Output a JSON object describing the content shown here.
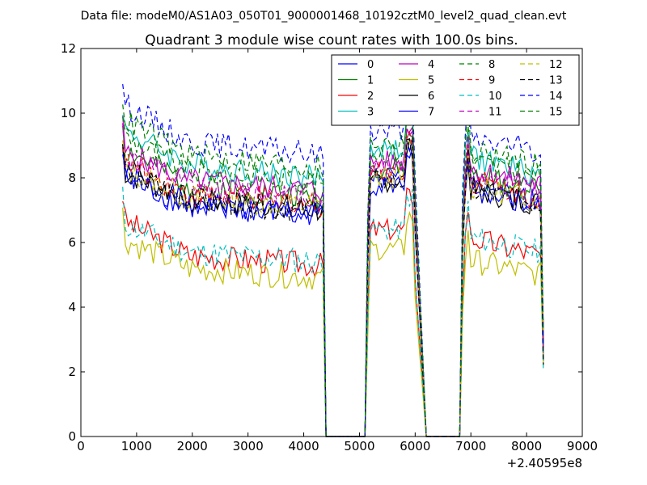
{
  "chart_data": {
    "type": "line",
    "suptitle": "Data file: modeM0/AS1A03_050T01_9000001468_10192cztM0_level2_quad_clean.evt",
    "title": "Quadrant 3 module wise count rates with 100.0s bins.",
    "xlabel": "",
    "ylabel": "",
    "x_offset_label": "+2.40595e8",
    "xlim": [
      0,
      9000
    ],
    "ylim": [
      0,
      12
    ],
    "xticks": [
      0,
      1000,
      2000,
      3000,
      4000,
      5000,
      6000,
      7000,
      8000,
      9000
    ],
    "yticks": [
      0,
      2,
      4,
      6,
      8,
      10,
      12
    ],
    "legend_position": "upper-right",
    "legend_columns": 4,
    "segments": [
      [
        750,
        4350
      ],
      [
        5150,
        5950
      ],
      [
        6850,
        8250
      ]
    ],
    "gaps": [
      [
        4400,
        5100
      ],
      [
        6200,
        6800
      ]
    ],
    "series": [
      {
        "name": "0",
        "color": "#0000ff",
        "dash": "solid",
        "level": [
          8.1,
          7.2,
          6.8,
          8.0,
          7.8,
          7.3
        ]
      },
      {
        "name": "1",
        "color": "#008000",
        "dash": "solid",
        "level": [
          8.9,
          7.8,
          7.4,
          8.3,
          8.1,
          7.6
        ]
      },
      {
        "name": "2",
        "color": "#ff0000",
        "dash": "solid",
        "level": [
          6.7,
          5.6,
          5.3,
          6.4,
          6.2,
          5.6
        ]
      },
      {
        "name": "3",
        "color": "#00bfbf",
        "dash": "solid",
        "level": [
          9.5,
          8.4,
          8.0,
          8.9,
          8.7,
          8.1
        ]
      },
      {
        "name": "4",
        "color": "#bf00bf",
        "dash": "solid",
        "level": [
          8.8,
          7.9,
          7.6,
          8.5,
          8.3,
          7.8
        ]
      },
      {
        "name": "5",
        "color": "#bfbf00",
        "dash": "solid",
        "level": [
          6.1,
          5.2,
          4.9,
          5.8,
          5.5,
          5.0
        ]
      },
      {
        "name": "6",
        "color": "#000000",
        "dash": "solid",
        "level": [
          8.2,
          7.3,
          7.0,
          7.9,
          7.7,
          7.2
        ]
      },
      {
        "name": "7",
        "color": "#0000ff",
        "dash": "solid",
        "level": [
          8.0,
          7.1,
          6.9,
          7.8,
          7.6,
          7.1
        ]
      },
      {
        "name": "8",
        "color": "#008000",
        "dash": "dashed",
        "level": [
          9.3,
          8.2,
          7.9,
          8.8,
          8.6,
          8.0
        ]
      },
      {
        "name": "9",
        "color": "#ff0000",
        "dash": "dashed",
        "level": [
          8.5,
          7.5,
          7.2,
          8.2,
          8.0,
          7.4
        ]
      },
      {
        "name": "10",
        "color": "#00bfbf",
        "dash": "dashed",
        "level": [
          6.6,
          5.7,
          5.4,
          6.4,
          6.2,
          5.7
        ]
      },
      {
        "name": "11",
        "color": "#bf00bf",
        "dash": "dashed",
        "level": [
          8.7,
          7.7,
          7.4,
          8.4,
          8.2,
          7.6
        ]
      },
      {
        "name": "12",
        "color": "#bfbf00",
        "dash": "dashed",
        "level": [
          8.3,
          7.4,
          7.1,
          8.0,
          7.8,
          7.3
        ]
      },
      {
        "name": "13",
        "color": "#000000",
        "dash": "dashed",
        "level": [
          8.3,
          7.3,
          7.0,
          7.9,
          7.7,
          7.2
        ]
      },
      {
        "name": "14",
        "color": "#0000ff",
        "dash": "dashed",
        "level": [
          10.3,
          9.1,
          8.7,
          9.5,
          9.3,
          8.8
        ]
      },
      {
        "name": "15",
        "color": "#008000",
        "dash": "dashed",
        "level": [
          9.8,
          8.7,
          8.3,
          9.1,
          8.9,
          8.4
        ]
      }
    ]
  }
}
